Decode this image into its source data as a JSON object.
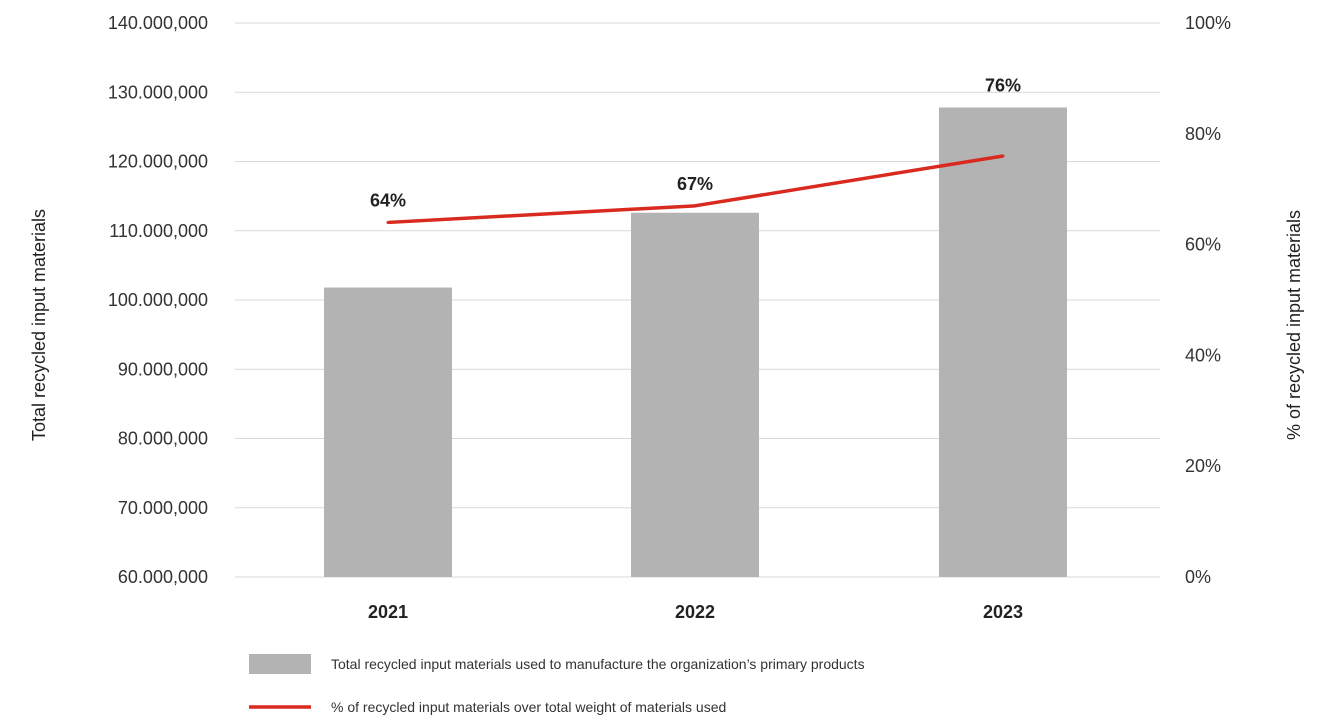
{
  "chart_data": {
    "type": "bar",
    "categories": [
      "2021",
      "2022",
      "2023"
    ],
    "series": [
      {
        "name": "Total recycled input materials used to manufacture the organization’s primary products",
        "kind": "bar",
        "axis": "left",
        "values": [
          101800000,
          112600000,
          127800000
        ],
        "color": "#b3b3b3"
      },
      {
        "name": "% of recycled input materials over total weight of materials used",
        "kind": "line",
        "axis": "right",
        "values": [
          64,
          67,
          76
        ],
        "labels": [
          "64%",
          "67%",
          "76%"
        ],
        "color": "#d92a20"
      }
    ],
    "ylabel": "Total recycled input materials",
    "y2label": "% of recycled input materials",
    "ylim": [
      60000000,
      140000000
    ],
    "y_ticks": [
      "60.000,000",
      "70.000,000",
      "80.000,000",
      "90.000,000",
      "100.000,000",
      "110.000,000",
      "120.000,000",
      "130.000,000",
      "140.000,000"
    ],
    "y2lim": [
      0,
      100
    ],
    "y2_ticks": [
      "0%",
      "20%",
      "40%",
      "60%",
      "80%",
      "100%"
    ],
    "grid": true,
    "legend_position": "bottom"
  }
}
